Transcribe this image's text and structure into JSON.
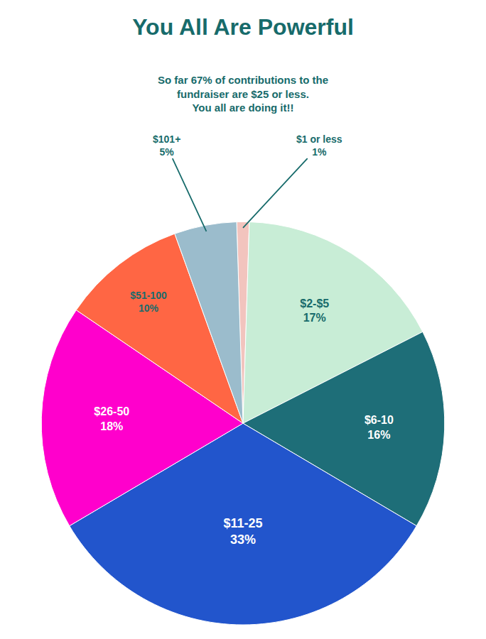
{
  "chart_data": {
    "type": "pie",
    "title": "You All Are Powerful",
    "subtitle": "So far 67% of contributions to the\nfundraiser are $25 or less.\nYou all are doing it!!",
    "categories": [
      "$1 or less",
      "$2-$5",
      "$6-10",
      "$11-25",
      "$26-50",
      "$51-100",
      "$101+"
    ],
    "values": [
      1,
      17,
      16,
      33,
      18,
      10,
      5
    ],
    "value_labels": [
      "1%",
      "17%",
      "16%",
      "33%",
      "18%",
      "10%",
      "5%"
    ],
    "colors": [
      "#f2c4be",
      "#c8edd6",
      "#1e6e78",
      "#2255cc",
      "#ff00cc",
      "#ff6644",
      "#9bbccc"
    ]
  }
}
